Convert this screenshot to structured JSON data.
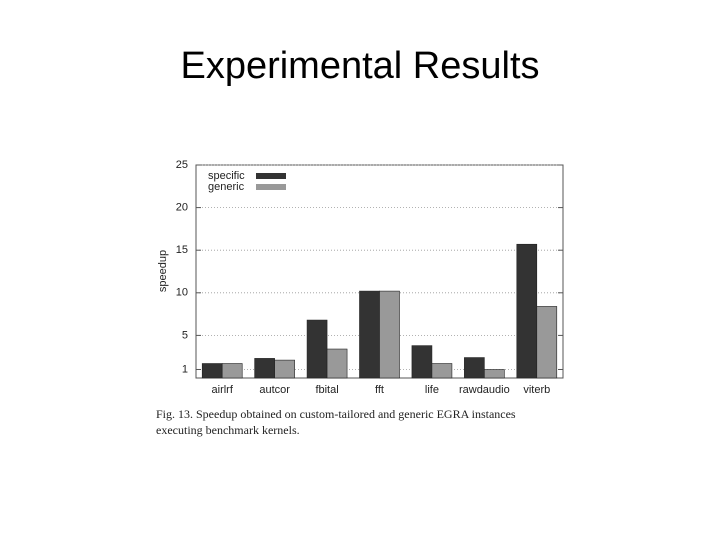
{
  "slide_title": "Experimental Results",
  "chart_data": {
    "type": "bar",
    "y_label": "speedup",
    "caption_line1": "Fig. 13.   Speedup obtained on custom-tailored and generic EGRA instances",
    "caption_line2": "executing benchmark kernels.",
    "categories": [
      "airlrf",
      "autcor",
      "fbital",
      "fft",
      "life",
      "rawdaudio",
      "viterb"
    ],
    "series": [
      {
        "name": "specific",
        "color": "#333333",
        "values": [
          1.7,
          2.3,
          6.8,
          10.2,
          3.8,
          2.4,
          15.7
        ]
      },
      {
        "name": "generic",
        "color": "#999999",
        "values": [
          1.7,
          2.1,
          3.4,
          10.2,
          1.7,
          1.0,
          8.4
        ]
      }
    ],
    "ylim": [
      0,
      25
    ],
    "yticks": [
      1,
      5,
      10,
      15,
      20,
      25
    ],
    "grid": true,
    "legend": "top-left"
  }
}
